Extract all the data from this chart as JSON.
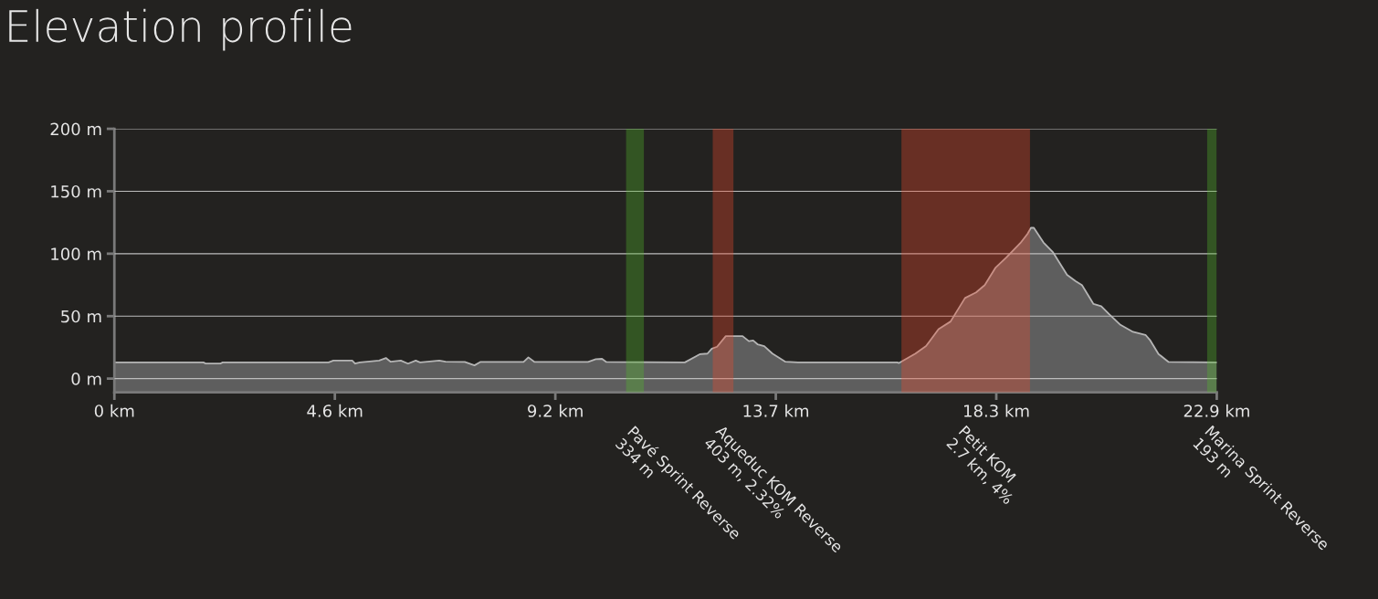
{
  "chart_data": {
    "type": "area",
    "title": "Elevation profile",
    "x": [
      0,
      1.85,
      1.9,
      2.2,
      2.25,
      4.45,
      4.55,
      4.94,
      5.0,
      5.1,
      5.5,
      5.64,
      5.74,
      5.95,
      6.1,
      6.26,
      6.35,
      6.75,
      6.88,
      7.28,
      7.48,
      7.6,
      8.5,
      8.6,
      8.73,
      9.84,
      10.0,
      10.13,
      10.22,
      11.85,
      12.16,
      12.32,
      12.41,
      12.52,
      12.7,
      13.05,
      13.18,
      13.27,
      13.36,
      13.5,
      13.67,
      13.94,
      14.2,
      16.26,
      16.3,
      16.64,
      16.86,
      17.12,
      17.37,
      17.67,
      17.9,
      18.08,
      18.3,
      18.53,
      18.82,
      18.97,
      19.04,
      19.1,
      19.3,
      19.5,
      19.79,
      19.97,
      20.1,
      20.34,
      20.5,
      20.67,
      20.9,
      21.16,
      21.42,
      21.52,
      21.69,
      21.9,
      22.9
    ],
    "series": [
      {
        "color": "#5e5e5e",
        "values": [
          13,
          13,
          12,
          12,
          13,
          13,
          14.5,
          14.5,
          12,
          13,
          14.5,
          16.5,
          13.5,
          14.5,
          12,
          14.5,
          13,
          14.5,
          13.5,
          13.3,
          10.6,
          13.3,
          13.3,
          17,
          13.3,
          13.3,
          15.5,
          15.8,
          13.3,
          13,
          19.5,
          20,
          24,
          25.5,
          34,
          34,
          30,
          30.5,
          27.5,
          26,
          20,
          13.5,
          13,
          13,
          12.5,
          20,
          26,
          39.6,
          45.7,
          64.5,
          69,
          74.8,
          88.6,
          97,
          108.5,
          116,
          120.7,
          120.7,
          109,
          101,
          83,
          78,
          74.8,
          59.7,
          58,
          51.3,
          43,
          37.4,
          35,
          30.5,
          19.7,
          13.3,
          13
        ]
      }
    ],
    "xlim": [
      0,
      22.9
    ],
    "ylim": [
      -11,
      200
    ],
    "xticks": [
      {
        "value": 0,
        "label": "0 km"
      },
      {
        "value": 4.58,
        "label": "4.6 km"
      },
      {
        "value": 9.16,
        "label": "9.2 km"
      },
      {
        "value": 13.74,
        "label": "13.7 km"
      },
      {
        "value": 18.32,
        "label": "18.3 km"
      },
      {
        "value": 22.9,
        "label": "22.9 km"
      }
    ],
    "yticks": [
      {
        "value": 0,
        "label": "0 m"
      },
      {
        "value": 50,
        "label": "50 m"
      },
      {
        "value": 100,
        "label": "100 m"
      },
      {
        "value": 150,
        "label": "150 m"
      },
      {
        "value": 200,
        "label": "200 m"
      }
    ],
    "grid": "y",
    "bands": [
      {
        "axis": "x",
        "from": 10.63,
        "to": 11.0,
        "label": "Pavé Sprint Reverse\n334 m",
        "color": "#52b82a"
      },
      {
        "axis": "x",
        "from": 12.43,
        "to": 12.86,
        "label": "Aqueduc KOM Reverse\n403 m, 2.32%",
        "color": "#ee482c"
      },
      {
        "axis": "x",
        "from": 16.35,
        "to": 19.02,
        "label": "Petit KOM\n2.7 km, 4%",
        "color": "#ee482c"
      },
      {
        "axis": "x",
        "from": 22.7,
        "to": 22.9,
        "label": "Marina Sprint Reverse\n193 m",
        "color": "#52b82a"
      }
    ]
  }
}
